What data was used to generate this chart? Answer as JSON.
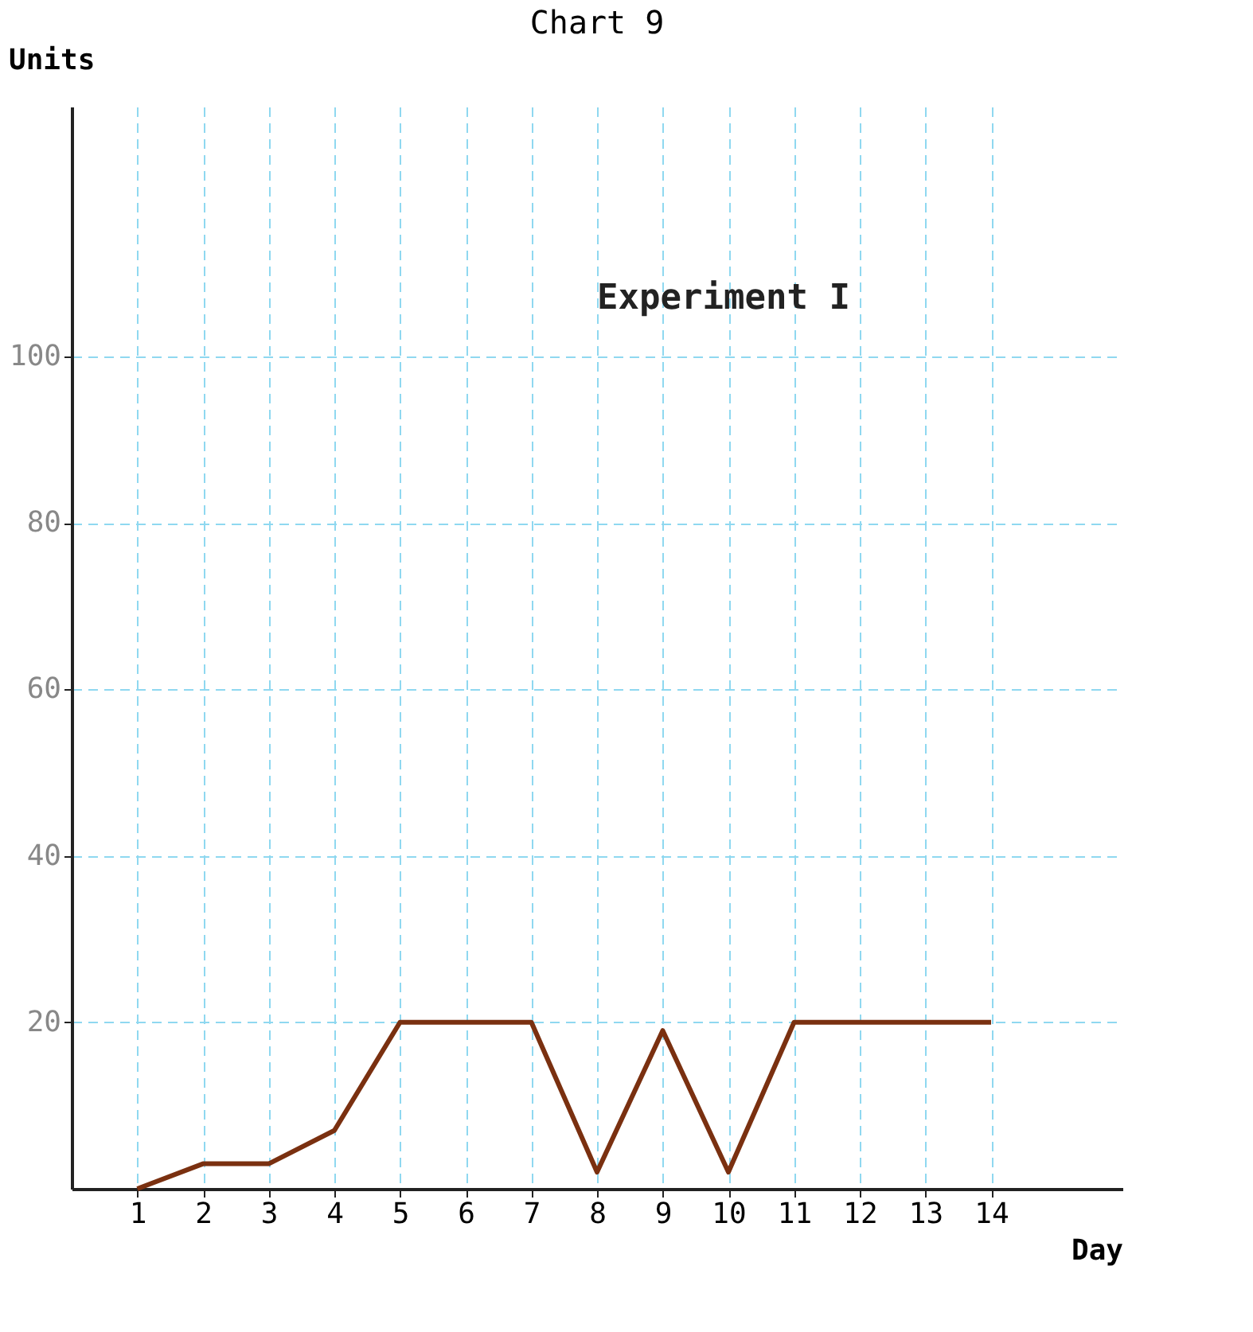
{
  "chart_data": {
    "type": "line",
    "title": "Chart 9",
    "xlabel": "Day",
    "ylabel": "Units",
    "annotations": [
      "Experiment I"
    ],
    "x": [
      1,
      2,
      3,
      4,
      5,
      6,
      7,
      8,
      9,
      10,
      11,
      12,
      13,
      14
    ],
    "series": [
      {
        "color": "#7a3010",
        "values": [
          0,
          3,
          3,
          7,
          20,
          20,
          20,
          2,
          19,
          2,
          20,
          20,
          20,
          20
        ]
      }
    ],
    "xlim": [
      0,
      16
    ],
    "xticks": [
      1,
      2,
      3,
      4,
      5,
      6,
      7,
      8,
      9,
      10,
      11,
      12,
      13,
      14
    ],
    "ylim": [
      0,
      130
    ],
    "yticks": [
      20,
      40,
      60,
      80,
      100
    ],
    "grid": true
  }
}
